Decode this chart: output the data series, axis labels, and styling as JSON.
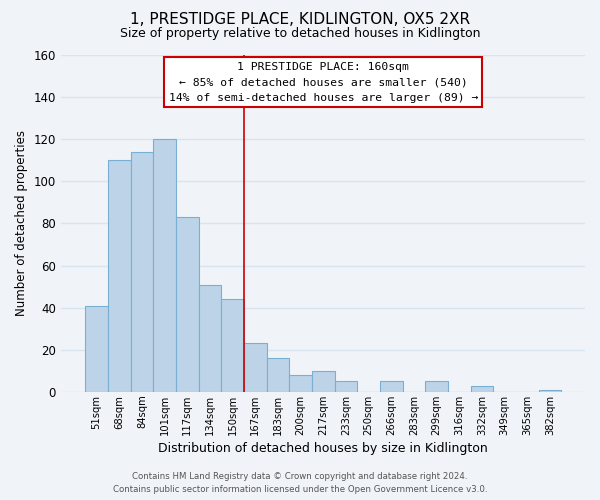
{
  "title": "1, PRESTIDGE PLACE, KIDLINGTON, OX5 2XR",
  "subtitle": "Size of property relative to detached houses in Kidlington",
  "xlabel": "Distribution of detached houses by size in Kidlington",
  "ylabel": "Number of detached properties",
  "bar_color": "#bdd4e8",
  "bar_edge_color": "#7aafd4",
  "background_color": "#f0f4f8",
  "grid_color": "#d8e4f0",
  "categories": [
    "51sqm",
    "68sqm",
    "84sqm",
    "101sqm",
    "117sqm",
    "134sqm",
    "150sqm",
    "167sqm",
    "183sqm",
    "200sqm",
    "217sqm",
    "233sqm",
    "250sqm",
    "266sqm",
    "283sqm",
    "299sqm",
    "316sqm",
    "332sqm",
    "349sqm",
    "365sqm",
    "382sqm"
  ],
  "values": [
    41,
    110,
    114,
    120,
    83,
    51,
    44,
    23,
    16,
    8,
    10,
    5,
    0,
    5,
    0,
    5,
    0,
    3,
    0,
    0,
    1
  ],
  "property_line_bar_index": 6,
  "annotation_title": "1 PRESTIDGE PLACE: 160sqm",
  "annotation_line1": "← 85% of detached houses are smaller (540)",
  "annotation_line2": "14% of semi-detached houses are larger (89) →",
  "annotation_box_facecolor": "white",
  "annotation_box_edgecolor": "#cc0000",
  "property_line_color": "#cc0000",
  "ylim": [
    0,
    160
  ],
  "yticks": [
    0,
    20,
    40,
    60,
    80,
    100,
    120,
    140,
    160
  ],
  "footer_line1": "Contains HM Land Registry data © Crown copyright and database right 2024.",
  "footer_line2": "Contains public sector information licensed under the Open Government Licence v3.0."
}
